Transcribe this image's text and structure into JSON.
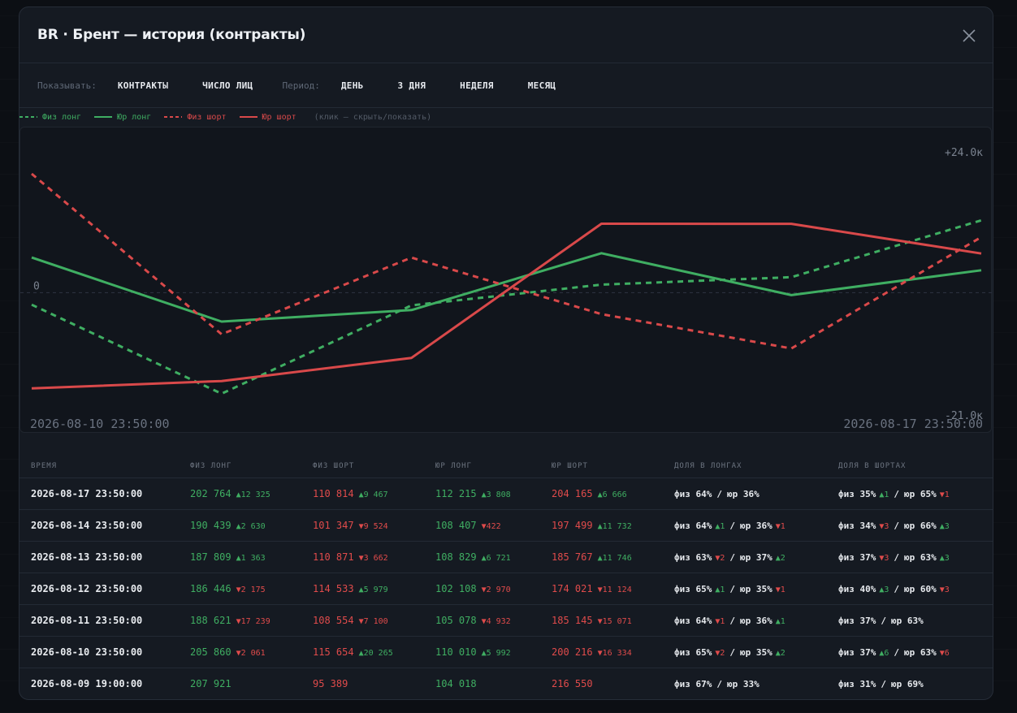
{
  "title": "BR · Брент — история (контракты)",
  "toolbar": {
    "show_label": "Показывать:",
    "show_options": [
      "КОНТРАКТЫ",
      "ЧИСЛО ЛИЦ"
    ],
    "period_label": "Период:",
    "period_options": [
      "ДЕНЬ",
      "3 ДНЯ",
      "НЕДЕЛЯ",
      "МЕСЯЦ"
    ]
  },
  "legend": {
    "items": [
      {
        "label": "Физ лонг",
        "color": "#3fae62",
        "dashed": true
      },
      {
        "label": "Юр лонг",
        "color": "#3fae62",
        "dashed": false
      },
      {
        "label": "Физ шорт",
        "color": "#d9494a",
        "dashed": true
      },
      {
        "label": "Юр шорт",
        "color": "#d9494a",
        "dashed": false
      }
    ],
    "hint": "(клик — скрыть/показать)"
  },
  "chart_data": {
    "type": "line",
    "y_top_label": "+24.0к",
    "y_bottom_label": "-21.0к",
    "zero_label": "0",
    "x_start_label": "2026-08-10 23:50:00",
    "x_end_label": "2026-08-17 23:50:00",
    "ylim": [
      -21000,
      24000
    ],
    "x": [
      "2026-08-10 23:50:00",
      "2026-08-11 23:50:00",
      "2026-08-12 23:50:00",
      "2026-08-13 23:50:00",
      "2026-08-14 23:50:00",
      "2026-08-17 23:50:00"
    ],
    "series": [
      {
        "name": "Физ лонг",
        "color": "#3fae62",
        "dashed": true,
        "values": [
          -2061,
          -17239,
          -2175,
          1363,
          2630,
          12325
        ]
      },
      {
        "name": "Юр лонг",
        "color": "#3fae62",
        "dashed": false,
        "values": [
          5992,
          -4932,
          -2970,
          6721,
          -422,
          3808
        ]
      },
      {
        "name": "Физ шорт",
        "color": "#d9494a",
        "dashed": true,
        "values": [
          20265,
          -7100,
          5979,
          -3662,
          -9524,
          9467
        ]
      },
      {
        "name": "Юр шорт",
        "color": "#d9494a",
        "dashed": false,
        "values": [
          -16334,
          -15071,
          -11124,
          11746,
          11732,
          6666
        ]
      }
    ]
  },
  "table": {
    "headers": [
      "ВРЕМЯ",
      "ФИЗ ЛОНГ",
      "ФИЗ ШОРТ",
      "ЮР ЛОНГ",
      "ЮР ШОРТ",
      "ДОЛЯ В ЛОНГАХ",
      "ДОЛЯ В ШОРТАХ"
    ],
    "rows": [
      {
        "time": "2026-08-17 23:50:00",
        "fl": "202 764",
        "fl_d": "▲12 325",
        "fl_dir": "up",
        "fs": "110 814",
        "fs_d": "▲9 467",
        "fs_dir": "up",
        "jl": "112 215",
        "jl_d": "▲3 808",
        "jl_dir": "up",
        "js": "204 165",
        "js_d": "▲6 666",
        "js_dir": "up",
        "ls_a": "физ 64%",
        "ls_ad": "",
        "ls_adir": "",
        "ls_b": "юр 36%",
        "ls_bd": "",
        "ls_bdir": "",
        "ss_a": "физ 35%",
        "ss_ad": "▲1",
        "ss_adir": "up",
        "ss_b": "юр 65%",
        "ss_bd": "▼1",
        "ss_bdir": "dn"
      },
      {
        "time": "2026-08-14 23:50:00",
        "fl": "190 439",
        "fl_d": "▲2 630",
        "fl_dir": "up",
        "fs": "101 347",
        "fs_d": "▼9 524",
        "fs_dir": "dn",
        "jl": "108 407",
        "jl_d": "▼422",
        "jl_dir": "dn",
        "js": "197 499",
        "js_d": "▲11 732",
        "js_dir": "up",
        "ls_a": "физ 64%",
        "ls_ad": "▲1",
        "ls_adir": "up",
        "ls_b": "юр 36%",
        "ls_bd": "▼1",
        "ls_bdir": "dn",
        "ss_a": "физ 34%",
        "ss_ad": "▼3",
        "ss_adir": "dn",
        "ss_b": "юр 66%",
        "ss_bd": "▲3",
        "ss_bdir": "up"
      },
      {
        "time": "2026-08-13 23:50:00",
        "fl": "187 809",
        "fl_d": "▲1 363",
        "fl_dir": "up",
        "fs": "110 871",
        "fs_d": "▼3 662",
        "fs_dir": "dn",
        "jl": "108 829",
        "jl_d": "▲6 721",
        "jl_dir": "up",
        "js": "185 767",
        "js_d": "▲11 746",
        "js_dir": "up",
        "ls_a": "физ 63%",
        "ls_ad": "▼2",
        "ls_adir": "dn",
        "ls_b": "юр 37%",
        "ls_bd": "▲2",
        "ls_bdir": "up",
        "ss_a": "физ 37%",
        "ss_ad": "▼3",
        "ss_adir": "dn",
        "ss_b": "юр 63%",
        "ss_bd": "▲3",
        "ss_bdir": "up"
      },
      {
        "time": "2026-08-12 23:50:00",
        "fl": "186 446",
        "fl_d": "▼2 175",
        "fl_dir": "dn",
        "fs": "114 533",
        "fs_d": "▲5 979",
        "fs_dir": "up",
        "jl": "102 108",
        "jl_d": "▼2 970",
        "jl_dir": "dn",
        "js": "174 021",
        "js_d": "▼11 124",
        "js_dir": "dn",
        "ls_a": "физ 65%",
        "ls_ad": "▲1",
        "ls_adir": "up",
        "ls_b": "юр 35%",
        "ls_bd": "▼1",
        "ls_bdir": "dn",
        "ss_a": "физ 40%",
        "ss_ad": "▲3",
        "ss_adir": "up",
        "ss_b": "юр 60%",
        "ss_bd": "▼3",
        "ss_bdir": "dn"
      },
      {
        "time": "2026-08-11 23:50:00",
        "fl": "188 621",
        "fl_d": "▼17 239",
        "fl_dir": "dn",
        "fs": "108 554",
        "fs_d": "▼7 100",
        "fs_dir": "dn",
        "jl": "105 078",
        "jl_d": "▼4 932",
        "jl_dir": "dn",
        "js": "185 145",
        "js_d": "▼15 071",
        "js_dir": "dn",
        "ls_a": "физ 64%",
        "ls_ad": "▼1",
        "ls_adir": "dn",
        "ls_b": "юр 36%",
        "ls_bd": "▲1",
        "ls_bdir": "up",
        "ss_a": "физ 37%",
        "ss_ad": "",
        "ss_adir": "",
        "ss_b": "юр 63%",
        "ss_bd": "",
        "ss_bdir": ""
      },
      {
        "time": "2026-08-10 23:50:00",
        "fl": "205 860",
        "fl_d": "▼2 061",
        "fl_dir": "dn",
        "fs": "115 654",
        "fs_d": "▲20 265",
        "fs_dir": "up",
        "jl": "110 010",
        "jl_d": "▲5 992",
        "jl_dir": "up",
        "js": "200 216",
        "js_d": "▼16 334",
        "js_dir": "dn",
        "ls_a": "физ 65%",
        "ls_ad": "▼2",
        "ls_adir": "dn",
        "ls_b": "юр 35%",
        "ls_bd": "▲2",
        "ls_bdir": "up",
        "ss_a": "физ 37%",
        "ss_ad": "▲6",
        "ss_adir": "up",
        "ss_b": "юр 63%",
        "ss_bd": "▼6",
        "ss_bdir": "dn"
      },
      {
        "time": "2026-08-09 19:00:00",
        "fl": "207 921",
        "fl_d": "",
        "fl_dir": "",
        "fs": "95 389",
        "fs_d": "",
        "fs_dir": "",
        "jl": "104 018",
        "jl_d": "",
        "jl_dir": "",
        "js": "216 550",
        "js_d": "",
        "js_dir": "",
        "ls_a": "физ 67%",
        "ls_ad": "",
        "ls_adir": "",
        "ls_b": "юр 33%",
        "ls_bd": "",
        "ls_bdir": "",
        "ss_a": "физ 31%",
        "ss_ad": "",
        "ss_adir": "",
        "ss_b": "юр 69%",
        "ss_bd": "",
        "ss_bdir": ""
      }
    ],
    "separator": "/"
  }
}
